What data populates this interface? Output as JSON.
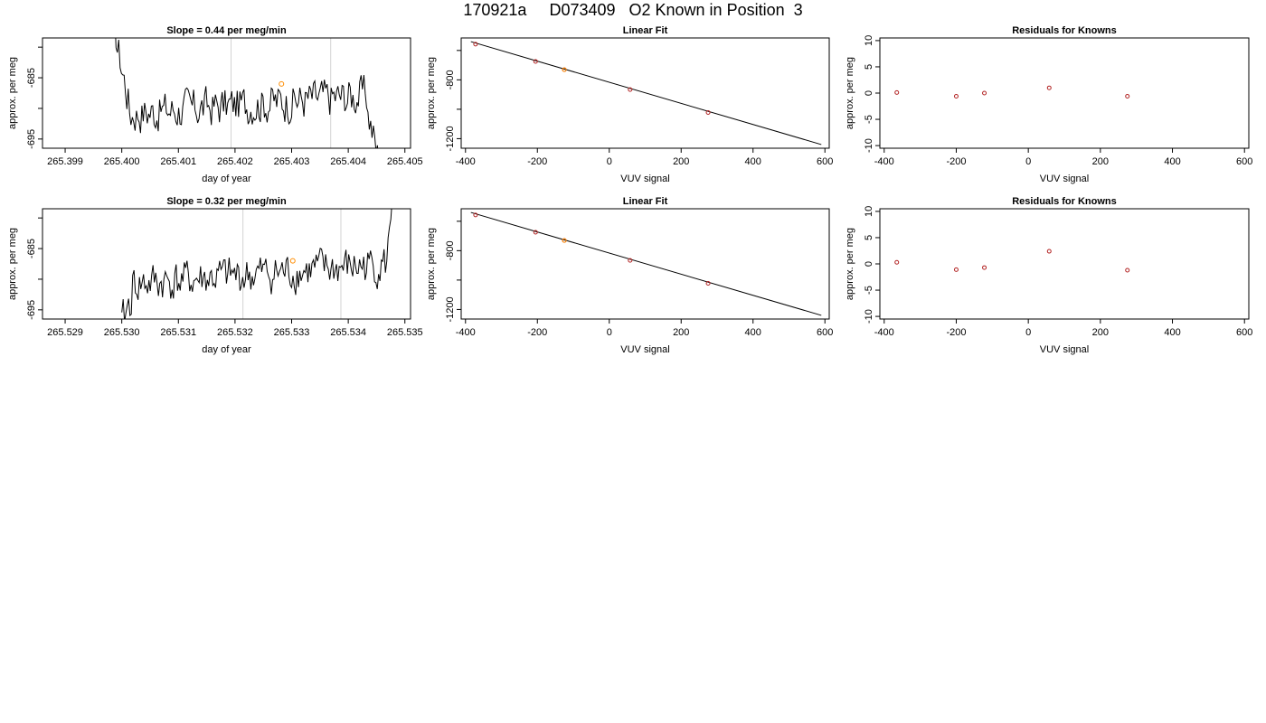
{
  "page": {
    "title": "170921a     D073409   O2 Known in Position  3"
  },
  "colors": {
    "trace": "#000000",
    "frame": "#000000",
    "marker_line": "#d3d3d3",
    "known_point": "#b22222",
    "highlight_point": "#ff8c00"
  },
  "chart_data": [
    {
      "type": "line",
      "title": "Slope =  0.44  per meg/min",
      "xlabel": "day of year",
      "ylabel": "approx. per meg",
      "xlim": [
        265.3986,
        265.4051
      ],
      "ylim": [
        -696.5,
        -678.5
      ],
      "xticks": [
        265.399,
        265.4,
        265.401,
        265.402,
        265.403,
        265.404,
        265.405
      ],
      "xtick_labels": [
        "265.399",
        "265.400",
        "265.401",
        "265.402",
        "265.403",
        "265.404",
        "265.405"
      ],
      "yticks": [
        -695,
        -690,
        -685,
        -680
      ],
      "ytick_labels": [
        "-695",
        "",
        "-685",
        ""
      ],
      "trace_start": 265.39985,
      "trace_end": 265.40466,
      "vlines": [
        265.40193,
        265.40369
      ],
      "highlight_point": {
        "x": 265.40282,
        "y": -686.0
      },
      "seed": 17
    },
    {
      "type": "scatter",
      "title": "Linear Fit",
      "xlabel": "VUV signal",
      "ylabel": "approx. per meg",
      "xlim": [
        -412,
        612
      ],
      "ylim": [
        -1265,
        -515
      ],
      "xticks": [
        -400,
        -200,
        0,
        200,
        400,
        600
      ],
      "xtick_labels": [
        "-400",
        "-200",
        "0",
        "200",
        "400",
        "600"
      ],
      "yticks": [
        -1200,
        -1000,
        -800,
        -600
      ],
      "ytick_labels": [
        "-1200",
        "",
        "-800",
        ""
      ],
      "fit_line": {
        "x": [
          -385,
          590
        ],
        "y": [
          -540,
          -1240
        ]
      },
      "points": [
        {
          "x": -372,
          "y": -557
        },
        {
          "x": -205,
          "y": -675
        },
        {
          "x": -125,
          "y": -731
        },
        {
          "x": 58,
          "y": -866
        },
        {
          "x": 275,
          "y": -1022
        }
      ],
      "highlight_point": {
        "x": -125,
        "y": -731
      }
    },
    {
      "type": "scatter",
      "title": "Residuals for Knowns",
      "xlabel": "VUV signal",
      "ylabel": "approx. per meg",
      "xlim": [
        -412,
        612
      ],
      "ylim": [
        -10.5,
        10.5
      ],
      "xticks": [
        -400,
        -200,
        0,
        200,
        400,
        600
      ],
      "xtick_labels": [
        "-400",
        "-200",
        "0",
        "200",
        "400",
        "600"
      ],
      "yticks": [
        -10,
        -5,
        0,
        5,
        10
      ],
      "ytick_labels": [
        "-10",
        "-5",
        "0",
        "5",
        "10"
      ],
      "points": [
        {
          "x": -365,
          "y": 0.1
        },
        {
          "x": -200,
          "y": -0.6
        },
        {
          "x": -122,
          "y": 0.0
        },
        {
          "x": 58,
          "y": 1.0
        },
        {
          "x": 275,
          "y": -0.6
        }
      ]
    },
    {
      "type": "line",
      "title": "Slope =  0.32  per meg/min",
      "xlabel": "day of year",
      "ylabel": "approx. per meg",
      "xlim": [
        265.5286,
        265.5351
      ],
      "ylim": [
        -696.5,
        -678.5
      ],
      "xticks": [
        265.529,
        265.53,
        265.531,
        265.532,
        265.533,
        265.534,
        265.535
      ],
      "xtick_labels": [
        "265.529",
        "265.530",
        "265.531",
        "265.532",
        "265.533",
        "265.534",
        "265.535"
      ],
      "yticks": [
        -695,
        -690,
        -685,
        -680
      ],
      "ytick_labels": [
        "-695",
        "",
        "-685",
        ""
      ],
      "trace_start": 265.53,
      "trace_end": 265.5348,
      "vlines": [
        265.53214,
        265.53387
      ],
      "highlight_point": {
        "x": 265.53302,
        "y": -687.0
      },
      "seed": 41
    },
    {
      "type": "scatter",
      "title": "Linear Fit",
      "xlabel": "VUV signal",
      "ylabel": "approx. per meg",
      "xlim": [
        -412,
        612
      ],
      "ylim": [
        -1265,
        -515
      ],
      "xticks": [
        -400,
        -200,
        0,
        200,
        400,
        600
      ],
      "xtick_labels": [
        "-400",
        "-200",
        "0",
        "200",
        "400",
        "600"
      ],
      "yticks": [
        -1200,
        -1000,
        -800,
        -600
      ],
      "ytick_labels": [
        "-1200",
        "",
        "-800",
        ""
      ],
      "fit_line": {
        "x": [
          -385,
          590
        ],
        "y": [
          -540,
          -1240
        ]
      },
      "points": [
        {
          "x": -372,
          "y": -557
        },
        {
          "x": -205,
          "y": -675
        },
        {
          "x": -125,
          "y": -731
        },
        {
          "x": 58,
          "y": -866
        },
        {
          "x": 275,
          "y": -1022
        }
      ],
      "highlight_point": {
        "x": -125,
        "y": -731
      }
    },
    {
      "type": "scatter",
      "title": "Residuals for Knowns",
      "xlabel": "VUV signal",
      "ylabel": "approx. per meg",
      "xlim": [
        -412,
        612
      ],
      "ylim": [
        -10.5,
        10.5
      ],
      "xticks": [
        -400,
        -200,
        0,
        200,
        400,
        600
      ],
      "xtick_labels": [
        "-400",
        "-200",
        "0",
        "200",
        "400",
        "600"
      ],
      "yticks": [
        -10,
        -5,
        0,
        5,
        10
      ],
      "ytick_labels": [
        "-10",
        "-5",
        "0",
        "5",
        "10"
      ],
      "points": [
        {
          "x": -365,
          "y": 0.3
        },
        {
          "x": -200,
          "y": -1.1
        },
        {
          "x": -122,
          "y": -0.7
        },
        {
          "x": 58,
          "y": 2.4
        },
        {
          "x": 275,
          "y": -1.2
        }
      ]
    }
  ]
}
